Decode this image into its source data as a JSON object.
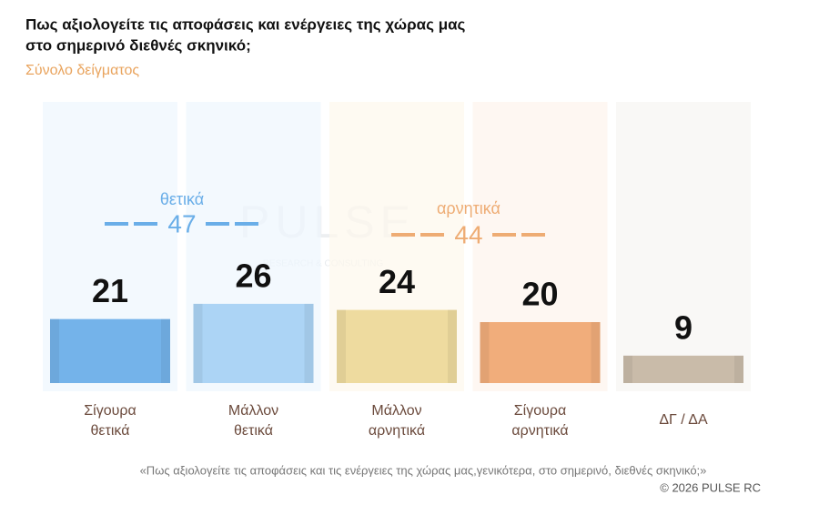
{
  "chart_data": {
    "type": "bar",
    "title": [
      "Πως αξιολογείτε τις αποφάσεις και ενέργειες της χώρας μας",
      "στο σημερινό διεθνές σκηνικό;"
    ],
    "subtitle": "Σύνολο δείγματος",
    "categories": [
      "Σίγουρα\nθετικά",
      "Μάλλον\nθετικά",
      "Μάλλον\nαρνητικά",
      "Σίγουρα\nαρνητικά",
      "ΔΓ / ΔΑ"
    ],
    "values": [
      21,
      26,
      24,
      20,
      9
    ],
    "colors": [
      "#74b3ea",
      "#acd4f5",
      "#eedb9f",
      "#f1ad7b",
      "#c9bba9"
    ],
    "annotations": [
      {
        "label": "θετικά",
        "value": 47,
        "color": "#6aaee8"
      },
      {
        "label": "αρνητικά",
        "value": 44,
        "color": "#eeac74"
      }
    ],
    "watermark": [
      "PULSE",
      "RESEARCH & CONSULTING"
    ],
    "footer": "«Πως αξιολογείτε τις αποφάσεις και τις ενέργειες της χώρας μας,γενικότερα, στο σημερινό, διεθνές σκηνικό;»",
    "copyright": "©  2026  PULSE RC"
  }
}
